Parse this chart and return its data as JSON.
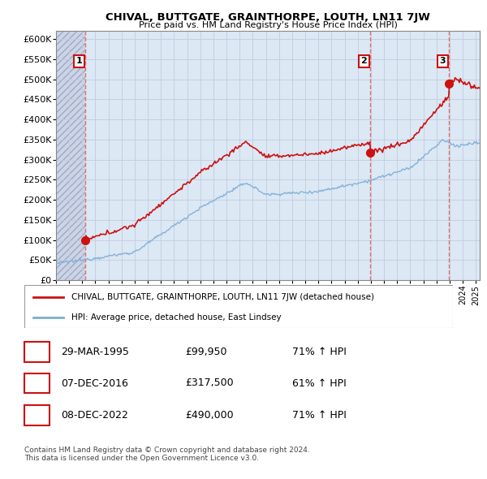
{
  "title": "CHIVAL, BUTTGATE, GRAINTHORPE, LOUTH, LN11 7JW",
  "subtitle": "Price paid vs. HM Land Registry's House Price Index (HPI)",
  "ylabel_ticks": [
    "£0",
    "£50K",
    "£100K",
    "£150K",
    "£200K",
    "£250K",
    "£300K",
    "£350K",
    "£400K",
    "£450K",
    "£500K",
    "£550K",
    "£600K"
  ],
  "ytick_values": [
    0,
    50000,
    100000,
    150000,
    200000,
    250000,
    300000,
    350000,
    400000,
    450000,
    500000,
    550000,
    600000
  ],
  "xmin": 1993.0,
  "xmax": 2025.3,
  "ymin": 0,
  "ymax": 620000,
  "sale_dates": [
    1995.22,
    2016.92,
    2022.93
  ],
  "sale_prices": [
    99950,
    317500,
    490000
  ],
  "sale_labels": [
    "1",
    "2",
    "3"
  ],
  "hpi_color": "#7aadd4",
  "price_color": "#cc1111",
  "dashed_line_color": "#dd6666",
  "bg_color": "#dde8f5",
  "hatch_bg_color": "#ccd4e8",
  "legend_label_price": "CHIVAL, BUTTGATE, GRAINTHORPE, LOUTH, LN11 7JW (detached house)",
  "legend_label_hpi": "HPI: Average price, detached house, East Lindsey",
  "table_rows": [
    [
      "1",
      "29-MAR-1995",
      "£99,950",
      "71% ↑ HPI"
    ],
    [
      "2",
      "07-DEC-2016",
      "£317,500",
      "61% ↑ HPI"
    ],
    [
      "3",
      "08-DEC-2022",
      "£490,000",
      "71% ↑ HPI"
    ]
  ],
  "footer": "Contains HM Land Registry data © Crown copyright and database right 2024.\nThis data is licensed under the Open Government Licence v3.0.",
  "grid_color": "#c0cce0"
}
